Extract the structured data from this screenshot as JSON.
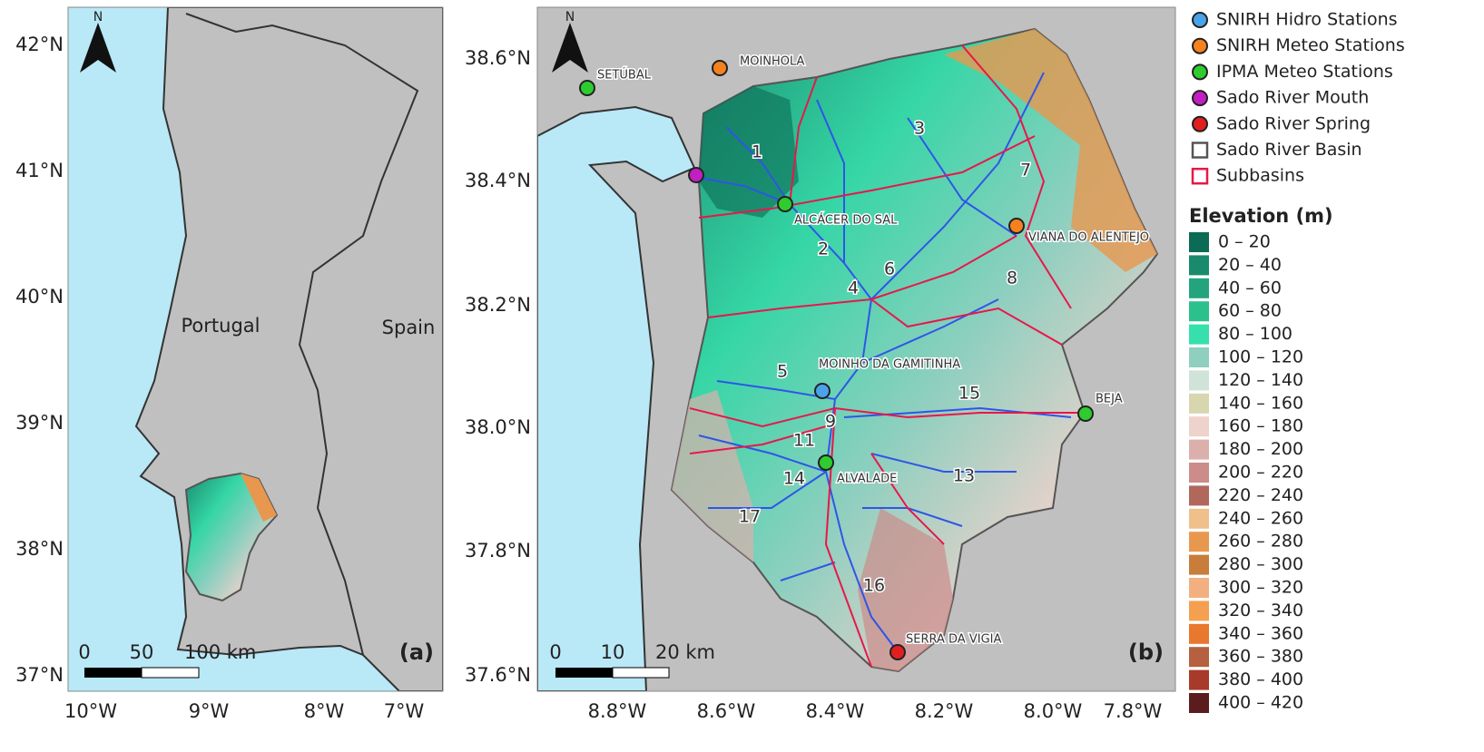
{
  "panel_a": {
    "label": "(a)",
    "north": "N",
    "countries": [
      "Portugal",
      "Spain"
    ],
    "lat_labels": [
      "42°N",
      "41°N",
      "40°N",
      "39°N",
      "38°N",
      "37°N"
    ],
    "lon_labels": [
      "10°W",
      "9°W",
      "8°W",
      "7°W"
    ],
    "scale_bar": [
      "0",
      "50",
      "100 km"
    ]
  },
  "panel_b": {
    "label": "(b)",
    "north": "N",
    "lat_labels": [
      "38.6°N",
      "38.4°N",
      "38.2°N",
      "38.0°N",
      "37.8°N",
      "37.6°N"
    ],
    "lon_labels": [
      "8.8°W",
      "8.6°W",
      "8.4°W",
      "8.2°W",
      "8.0°W",
      "7.8°W"
    ],
    "scale_bar": [
      "0",
      "10",
      "20 km"
    ],
    "stations": [
      {
        "name": "SETÚBAL",
        "color": "#2ecc2e"
      },
      {
        "name": "MOINHOLA",
        "color": "#f5821f"
      },
      {
        "name": "ALCÁCER DO SAL",
        "color": "#2ecc2e"
      },
      {
        "name": "VIANA DO ALENTEJO",
        "color": "#f5821f"
      },
      {
        "name": "MOINHO DA GAMITINHA",
        "color": "#4aa3e8"
      },
      {
        "name": "BEJA",
        "color": "#2ecc2e"
      },
      {
        "name": "ALVALADE",
        "color": "#2ecc2e"
      },
      {
        "name": "SERRA DA VIGIA",
        "color": "#e02020"
      }
    ],
    "subbasins": [
      "1",
      "2",
      "3",
      "4",
      "5",
      "6",
      "7",
      "8",
      "9",
      "11",
      "13",
      "14",
      "15",
      "16",
      "17"
    ]
  },
  "legend": {
    "items": [
      {
        "label": "SNIRH Hidro Stations",
        "color": "#4aa3e8",
        "shape": "circle"
      },
      {
        "label": "SNIRH Meteo Stations",
        "color": "#f5821f",
        "shape": "circle"
      },
      {
        "label": "IPMA Meteo Stations",
        "color": "#2ecc2e",
        "shape": "circle"
      },
      {
        "label": "Sado River Mouth",
        "color": "#c21fc2",
        "shape": "circle"
      },
      {
        "label": "Sado River Spring",
        "color": "#e02020",
        "shape": "circle"
      },
      {
        "label": "Sado River Basin",
        "color": "#555555",
        "shape": "square"
      },
      {
        "label": "Subbasins",
        "color": "#e8174a",
        "shape": "square"
      }
    ],
    "elevation_title": "Elevation (m)",
    "elevation_classes": [
      {
        "label": "0 – 20",
        "color": "#0b6b55"
      },
      {
        "label": "20 – 40",
        "color": "#1a8a6c"
      },
      {
        "label": "40 – 60",
        "color": "#24a47d"
      },
      {
        "label": "60 – 80",
        "color": "#2cc08d"
      },
      {
        "label": "80 – 100",
        "color": "#35e0ad"
      },
      {
        "label": "100 – 120",
        "color": "#8fcfbf"
      },
      {
        "label": "120 – 140",
        "color": "#cfe3d8"
      },
      {
        "label": "140 – 160",
        "color": "#d8d6ae"
      },
      {
        "label": "160 – 180",
        "color": "#f0d2cc"
      },
      {
        "label": "180 – 200",
        "color": "#dbb0ac"
      },
      {
        "label": "200 – 220",
        "color": "#cc8c8a"
      },
      {
        "label": "220 – 240",
        "color": "#b2675c"
      },
      {
        "label": "240 – 260",
        "color": "#f0c08a"
      },
      {
        "label": "260 – 280",
        "color": "#e8974f"
      },
      {
        "label": "280 – 300",
        "color": "#c87d3a"
      },
      {
        "label": "300 – 320",
        "color": "#f2b080"
      },
      {
        "label": "320 – 340",
        "color": "#f5a050"
      },
      {
        "label": "340 – 360",
        "color": "#e8782e"
      },
      {
        "label": "360 – 380",
        "color": "#b5603f"
      },
      {
        "label": "380 – 400",
        "color": "#a83a2a"
      },
      {
        "label": "400 – 420",
        "color": "#5a1c1c"
      }
    ]
  }
}
